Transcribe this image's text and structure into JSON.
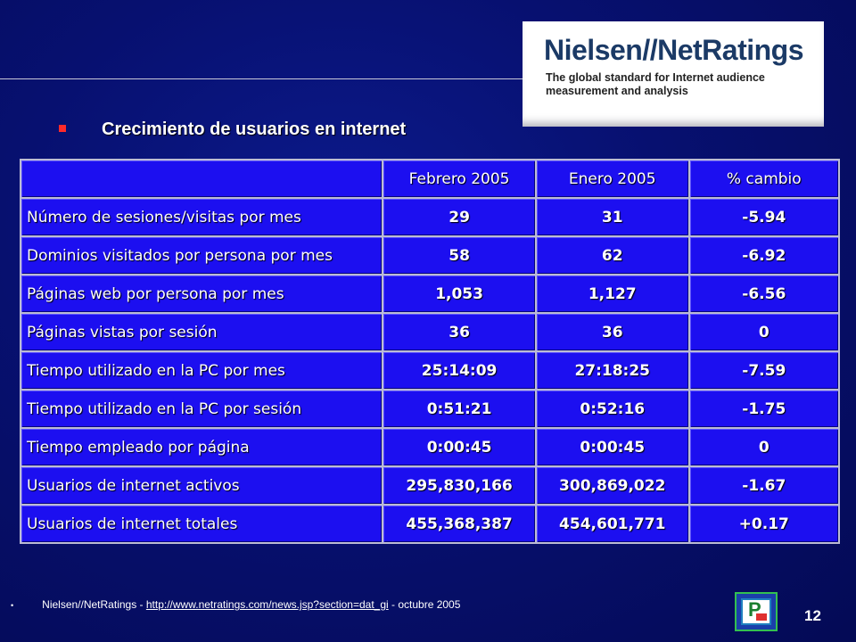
{
  "logo": {
    "title": "Nielsen//NetRatings",
    "subtitle": "The global standard for Internet audience measurement and analysis"
  },
  "heading": "Crecimiento de usuarios en internet",
  "table": {
    "headers": [
      "",
      "Febrero 2005",
      "Enero 2005",
      "% cambio"
    ],
    "rows": [
      [
        "Número de sesiones/visitas por mes",
        "29",
        "31",
        "-5.94"
      ],
      [
        "Dominios visitados por persona por mes",
        "58",
        "62",
        "-6.92"
      ],
      [
        "Páginas web por persona por mes",
        "1,053",
        "1,127",
        "-6.56"
      ],
      [
        "Páginas vistas por sesión",
        "36",
        "36",
        "0"
      ],
      [
        "Tiempo utilizado en la PC por mes",
        "25:14:09",
        "27:18:25",
        "-7.59"
      ],
      [
        "Tiempo utilizado en la PC por sesión",
        "0:51:21",
        "0:52:16",
        "-1.75"
      ],
      [
        "Tiempo empleado por página",
        "0:00:45",
        "0:00:45",
        "0"
      ],
      [
        "Usuarios de internet activos",
        "295,830,166",
        "300,869,022",
        "-1.67"
      ],
      [
        "Usuarios de internet totales",
        "455,368,387",
        "454,601,771",
        "+0.17"
      ]
    ]
  },
  "footer": {
    "bullet": "•",
    "source": "Nielsen//NetRatings - ",
    "link": "http://www.netratings.com/news.jsp?section=dat_gi",
    "date": " - octubre 2005"
  },
  "page_number": "12",
  "icon": {
    "name": "presentation-logo-icon",
    "letter": "P"
  }
}
